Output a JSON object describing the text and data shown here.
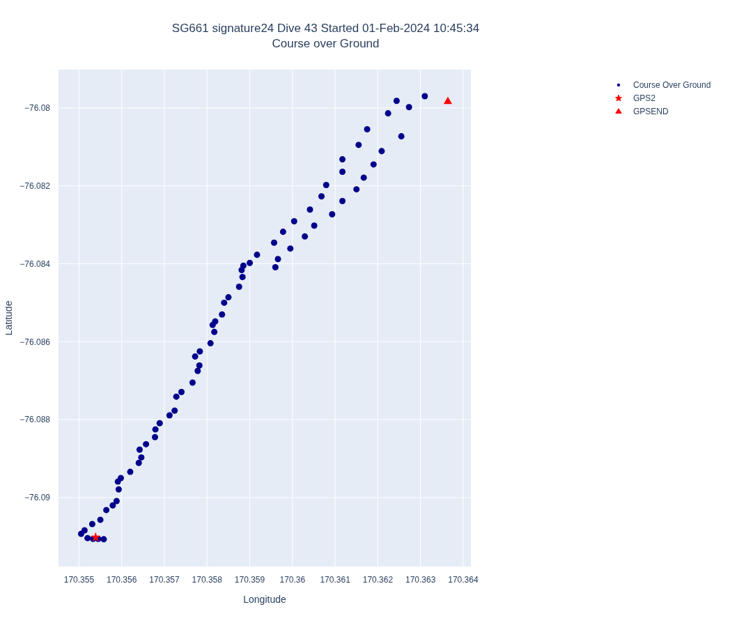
{
  "chart_data": {
    "type": "scatter",
    "title": "SG661 signature24 Dive 43 Started 01-Feb-2024 10:45:34",
    "subtitle": "Course over Ground",
    "xlabel": "Longitude",
    "ylabel": "Latitude",
    "xlim": [
      170.35452,
      170.36418
    ],
    "ylim": [
      -76.09177,
      -76.07902
    ],
    "xticks": [
      170.355,
      170.356,
      170.357,
      170.358,
      170.359,
      170.36,
      170.361,
      170.362,
      170.363,
      170.364
    ],
    "yticks": [
      {
        "value": -76.09,
        "label": "−76.09"
      },
      {
        "value": -76.088,
        "label": "−76.088"
      },
      {
        "value": -76.086,
        "label": "−76.086"
      },
      {
        "value": -76.084,
        "label": "−76.084"
      },
      {
        "value": -76.082,
        "label": "−76.082"
      },
      {
        "value": -76.08,
        "label": "−76.08"
      }
    ],
    "grid": true,
    "legend": "top right",
    "series": [
      {
        "name": "Course Over Ground",
        "color": "#00008b",
        "marker": "circle",
        "x": [
          170.35558,
          170.35545,
          170.35533,
          170.3552,
          170.35505,
          170.35513,
          170.35531,
          170.3555,
          170.35564,
          170.35579,
          170.35588,
          170.35593,
          170.35591,
          170.35598,
          170.3562,
          170.3564,
          170.35646,
          170.35642,
          170.35657,
          170.35678,
          170.35679,
          170.35689,
          170.35712,
          170.35724,
          170.35728,
          170.3574,
          170.35766,
          170.35778,
          170.35782,
          170.35772,
          170.35783,
          170.35808,
          170.35817,
          170.35813,
          170.35819,
          170.35835,
          170.3584,
          170.3585,
          170.35875,
          170.35883,
          170.35881,
          170.35885,
          170.359,
          170.3596,
          170.35917,
          170.35966,
          170.35957,
          170.35995,
          170.35978,
          170.36029,
          170.36004,
          170.36051,
          170.36041,
          170.36093,
          170.36068,
          170.36117,
          170.36079,
          170.3615,
          170.36117,
          170.36167,
          170.36117,
          170.3619,
          170.36155,
          170.36209,
          170.36175,
          170.36255,
          170.36224,
          170.36273,
          170.36244,
          170.3631
        ],
        "values": [
          -76.09107,
          -76.09106,
          -76.09106,
          -76.09104,
          -76.09093,
          -76.09084,
          -76.09068,
          -76.09057,
          -76.09032,
          -76.0902,
          -76.09009,
          -76.08979,
          -76.08959,
          -76.0895,
          -76.08934,
          -76.08911,
          -76.08897,
          -76.08877,
          -76.08863,
          -76.08845,
          -76.08825,
          -76.08809,
          -76.08789,
          -76.08777,
          -76.08741,
          -76.08729,
          -76.08705,
          -76.08675,
          -76.08661,
          -76.08638,
          -76.08625,
          -76.08604,
          -76.08575,
          -76.08557,
          -76.08548,
          -76.0853,
          -76.085,
          -76.08486,
          -76.08459,
          -76.08434,
          -76.08416,
          -76.08405,
          -76.08398,
          -76.08409,
          -76.08377,
          -76.08388,
          -76.08346,
          -76.08361,
          -76.08318,
          -76.0833,
          -76.08291,
          -76.08302,
          -76.08261,
          -76.08273,
          -76.08227,
          -76.08239,
          -76.08198,
          -76.08209,
          -76.08164,
          -76.08179,
          -76.08132,
          -76.08145,
          -76.08095,
          -76.08111,
          -76.08055,
          -76.08073,
          -76.08014,
          -76.07998,
          -76.07982,
          -76.0797
        ]
      },
      {
        "name": "GPS2",
        "color": "#ff0000",
        "marker": "star",
        "x": [
          170.35539
        ],
        "values": [
          -76.09102
        ]
      },
      {
        "name": "GPSEND",
        "color": "#ff0000",
        "marker": "triangle",
        "x": [
          170.36364
        ],
        "values": [
          -76.07984
        ]
      }
    ]
  }
}
